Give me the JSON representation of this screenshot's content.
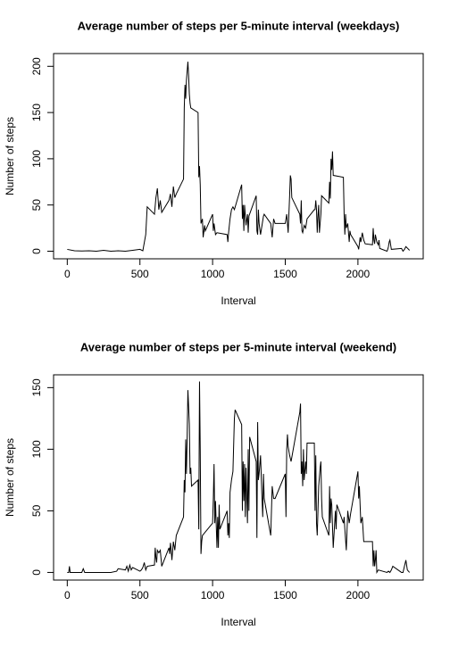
{
  "chart_data": [
    {
      "type": "line",
      "title": "Average number of steps per 5-minute interval (weekdays)",
      "xlabel": "Interval",
      "ylabel": "Number of steps",
      "color": "#000000",
      "xlim": [
        -94.2,
        2449.2
      ],
      "ylim": [
        -8.2,
        213.8
      ],
      "xticks": [
        0,
        500,
        1000,
        1500,
        2000
      ],
      "yticks": [
        0,
        50,
        100,
        150,
        200
      ],
      "x": [
        0,
        50,
        100,
        150,
        200,
        250,
        300,
        350,
        400,
        450,
        500,
        520,
        540,
        550,
        600,
        610,
        620,
        630,
        640,
        650,
        700,
        710,
        720,
        730,
        740,
        750,
        800,
        805,
        810,
        815,
        820,
        830,
        835,
        840,
        845,
        850,
        900,
        905,
        910,
        915,
        920,
        930,
        935,
        945,
        950,
        1000,
        1005,
        1010,
        1020,
        1030,
        1100,
        1105,
        1110,
        1120,
        1130,
        1140,
        1150,
        1200,
        1205,
        1210,
        1215,
        1220,
        1230,
        1240,
        1245,
        1250,
        1300,
        1305,
        1310,
        1315,
        1320,
        1330,
        1340,
        1350,
        1355,
        1400,
        1410,
        1420,
        1430,
        1500,
        1510,
        1520,
        1530,
        1535,
        1540,
        1545,
        1600,
        1605,
        1610,
        1615,
        1620,
        1630,
        1640,
        1650,
        1700,
        1705,
        1710,
        1715,
        1720,
        1725,
        1730,
        1735,
        1740,
        1745,
        1750,
        1800,
        1805,
        1810,
        1815,
        1820,
        1825,
        1830,
        1900,
        1905,
        1910,
        1915,
        1920,
        1930,
        1940,
        1945,
        1950,
        2000,
        2005,
        2010,
        2015,
        2020,
        2030,
        2040,
        2050,
        2100,
        2105,
        2110,
        2115,
        2120,
        2130,
        2140,
        2145,
        2150,
        2200,
        2205,
        2210,
        2215,
        2220,
        2230,
        2300,
        2310,
        2320,
        2330,
        2355
      ],
      "values": [
        2,
        0.5,
        0.3,
        0.5,
        0,
        1,
        0,
        0.5,
        0,
        1,
        2,
        0.5,
        18,
        48,
        40,
        58,
        68,
        45,
        55,
        42,
        55,
        62,
        48,
        70,
        58,
        62,
        78,
        155,
        180,
        165,
        185,
        205,
        190,
        170,
        160,
        155,
        150,
        80,
        92,
        72,
        30,
        35,
        15,
        28,
        22,
        40,
        22,
        30,
        18,
        20,
        18,
        10,
        20,
        35,
        45,
        48,
        45,
        72,
        35,
        50,
        22,
        50,
        28,
        40,
        20,
        38,
        60,
        22,
        18,
        45,
        30,
        18,
        28,
        38,
        40,
        30,
        15,
        35,
        30,
        30,
        40,
        20,
        60,
        82,
        78,
        58,
        40,
        30,
        55,
        22,
        20,
        28,
        25,
        35,
        45,
        45,
        55,
        45,
        20,
        38,
        50,
        20,
        30,
        40,
        60,
        52,
        75,
        57,
        100,
        88,
        108,
        82,
        80,
        40,
        18,
        40,
        25,
        30,
        10,
        22,
        18,
        5,
        2,
        8,
        15,
        10,
        20,
        12,
        8,
        7,
        25,
        12,
        8,
        18,
        10,
        7,
        12,
        3,
        0,
        2,
        5,
        10,
        12,
        2,
        3,
        0,
        2,
        5,
        1
      ]
    },
    {
      "type": "line",
      "title": "Average number of steps per 5-minute interval (weekend)",
      "xlabel": "Interval",
      "ylabel": "Number of steps",
      "color": "#000000",
      "xlim": [
        -94.2,
        2449.2
      ],
      "ylim": [
        -6.2,
        160.4
      ],
      "xticks": [
        0,
        500,
        1000,
        1500,
        2000
      ],
      "yticks": [
        0,
        50,
        100,
        150
      ],
      "x": [
        0,
        10,
        15,
        20,
        100,
        110,
        120,
        200,
        300,
        340,
        350,
        400,
        410,
        420,
        430,
        440,
        450,
        500,
        510,
        520,
        530,
        540,
        550,
        600,
        605,
        610,
        615,
        620,
        630,
        640,
        650,
        700,
        705,
        710,
        715,
        720,
        730,
        740,
        750,
        800,
        805,
        810,
        815,
        820,
        825,
        830,
        835,
        840,
        845,
        850,
        855,
        900,
        905,
        910,
        915,
        920,
        925,
        930,
        1000,
        1005,
        1010,
        1015,
        1020,
        1030,
        1035,
        1040,
        1045,
        1050,
        1100,
        1105,
        1110,
        1115,
        1120,
        1130,
        1140,
        1150,
        1155,
        1200,
        1205,
        1210,
        1215,
        1220,
        1225,
        1230,
        1240,
        1245,
        1250,
        1255,
        1300,
        1305,
        1310,
        1315,
        1320,
        1330,
        1340,
        1345,
        1350,
        1355,
        1400,
        1410,
        1420,
        1430,
        1500,
        1505,
        1510,
        1515,
        1520,
        1530,
        1540,
        1600,
        1605,
        1610,
        1615,
        1620,
        1625,
        1630,
        1640,
        1645,
        1650,
        1700,
        1705,
        1710,
        1715,
        1720,
        1730,
        1740,
        1745,
        1750,
        1755,
        1800,
        1805,
        1810,
        1815,
        1820,
        1830,
        1840,
        1845,
        1850,
        1855,
        1900,
        1905,
        1910,
        1920,
        1930,
        1940,
        1950,
        2000,
        2005,
        2010,
        2015,
        2020,
        2030,
        2040,
        2050,
        2100,
        2105,
        2110,
        2115,
        2120,
        2125,
        2130,
        2140,
        2200,
        2210,
        2220,
        2230,
        2240,
        2300,
        2310,
        2330,
        2340,
        2355
      ],
      "values": [
        0,
        0,
        5,
        0,
        0,
        3,
        0,
        0,
        0,
        1,
        3,
        2,
        5,
        1,
        6,
        2,
        4,
        1,
        2,
        4,
        8,
        2,
        5,
        6,
        20,
        12,
        8,
        18,
        16,
        18,
        5,
        20,
        15,
        24,
        18,
        10,
        25,
        18,
        30,
        45,
        75,
        65,
        108,
        80,
        110,
        148,
        135,
        120,
        80,
        85,
        70,
        75,
        35,
        155,
        100,
        15,
        25,
        30,
        40,
        60,
        88,
        40,
        58,
        20,
        45,
        20,
        55,
        35,
        50,
        30,
        40,
        28,
        65,
        75,
        82,
        125,
        132,
        120,
        50,
        90,
        58,
        88,
        45,
        85,
        40,
        100,
        50,
        110,
        90,
        28,
        122,
        75,
        80,
        95,
        60,
        45,
        80,
        60,
        30,
        70,
        60,
        60,
        80,
        45,
        100,
        112,
        102,
        95,
        90,
        130,
        137,
        80,
        90,
        70,
        100,
        75,
        90,
        80,
        105,
        105,
        50,
        95,
        40,
        30,
        70,
        85,
        90,
        60,
        45,
        30,
        70,
        40,
        60,
        55,
        20,
        40,
        50,
        35,
        55,
        40,
        45,
        35,
        18,
        50,
        40,
        48,
        82,
        60,
        70,
        55,
        40,
        45,
        25,
        25,
        25,
        5,
        18,
        5,
        10,
        18,
        0,
        2,
        0,
        1,
        0,
        2,
        5,
        0,
        0,
        10,
        2,
        0
      ]
    }
  ]
}
